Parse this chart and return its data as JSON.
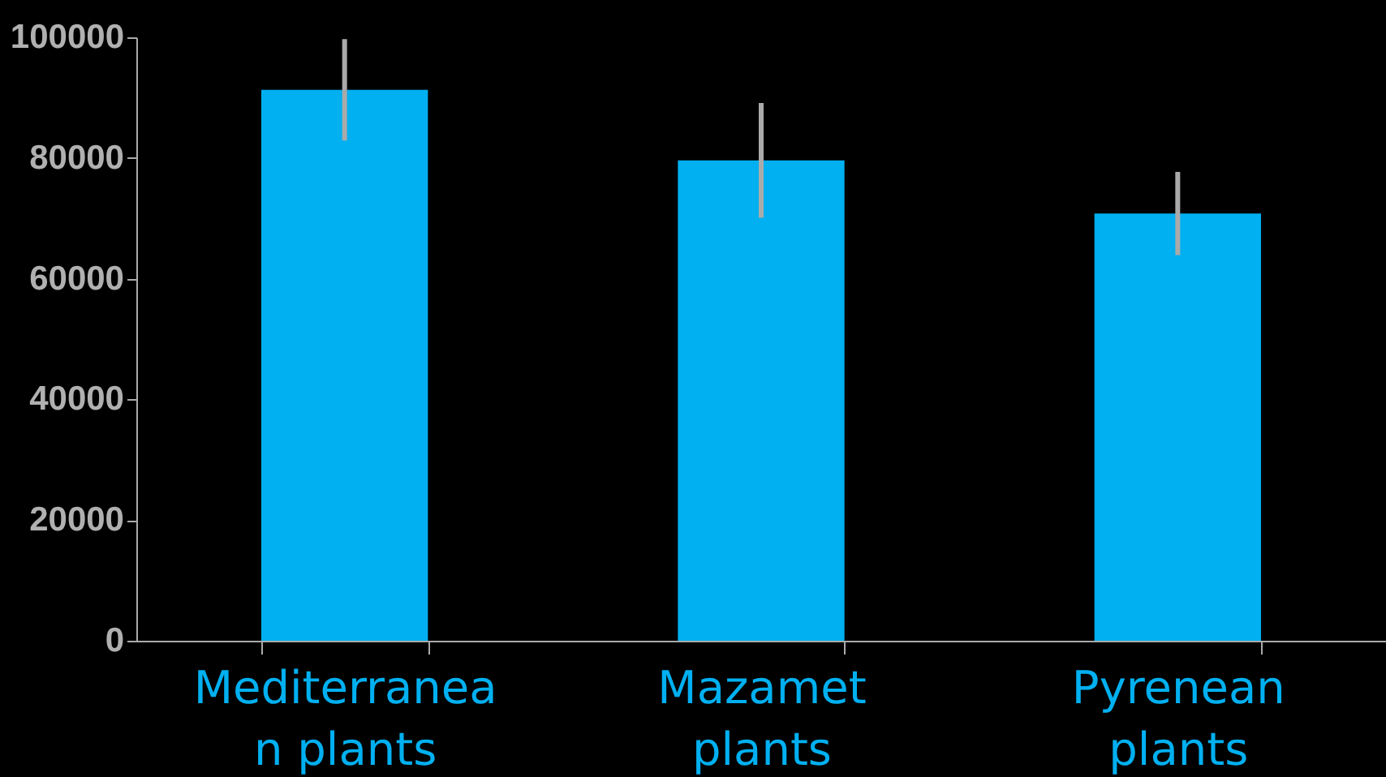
{
  "chart_data": {
    "type": "bar",
    "categories": [
      "Mediterranean plants",
      "Mazamet plants",
      "Pyrenean plants"
    ],
    "values": [
      91300,
      79600,
      70800
    ],
    "errors": [
      8400,
      9500,
      6900
    ],
    "color": "#00b0f0",
    "ylim": [
      0,
      100000
    ],
    "yticks": [
      0,
      20000,
      40000,
      60000,
      80000,
      100000
    ],
    "grid": false
  }
}
